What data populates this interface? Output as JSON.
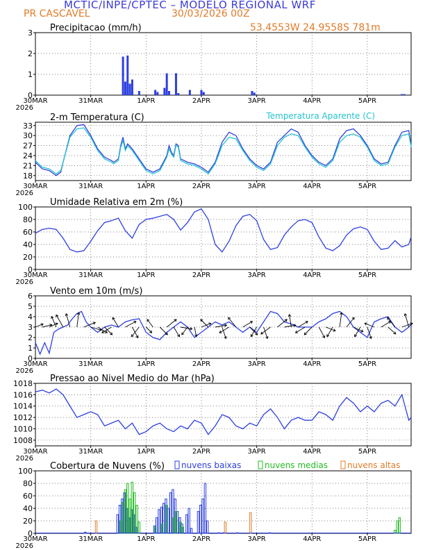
{
  "header": {
    "title": "MCTIC/INPE/CPTEC – MODELO REGIONAL WRF",
    "station": "PR CASCAVEL",
    "run": "30/03/2026 00Z",
    "coords": "53.4553W  24.9558S  781m"
  },
  "colors": {
    "title": "#3a3ad8",
    "accent": "#e07b28",
    "line": "#2d3fe0",
    "apparent": "#22c4cc",
    "low": "#2d3fe0",
    "mid": "#22bb22",
    "high": "#e07b28"
  },
  "chart_data": [
    {
      "id": "precip",
      "type": "bar",
      "title": "Precipitacao (mm/h)",
      "ylim": [
        0,
        3
      ],
      "yticks": [
        0,
        1,
        2,
        3
      ],
      "xlabels": [
        "30MAR",
        "31MAR",
        "1APR",
        "2APR",
        "3APR",
        "4APR",
        "5APR"
      ],
      "year": "2026",
      "series": [
        {
          "name": "precipitacao",
          "x": [
            38,
            39,
            40,
            41,
            42,
            45,
            52,
            53,
            56,
            57,
            58,
            61,
            62,
            67,
            72,
            73,
            94,
            95,
            159,
            160
          ],
          "values": [
            1.85,
            0.65,
            1.9,
            0.55,
            0.75,
            0.2,
            0.25,
            0.15,
            0.35,
            1.05,
            0.2,
            1.05,
            0.1,
            0.25,
            0.25,
            0.15,
            0.2,
            0.12,
            0.05,
            0.05
          ]
        }
      ]
    },
    {
      "id": "temp",
      "type": "line",
      "title": "2-m Temperatura (C)",
      "legend": [
        "Temperatura Aparente (C)"
      ],
      "ylim": [
        16.5,
        34
      ],
      "yticks": [
        18,
        21,
        24,
        27,
        30,
        33
      ],
      "xlabels": [
        "30MAR",
        "31MAR",
        "1APR",
        "2APR",
        "3APR",
        "4APR",
        "5APR"
      ],
      "year": "2026",
      "x": [
        0,
        3,
        6,
        8,
        9,
        11,
        12,
        15,
        18,
        21,
        24,
        27,
        30,
        33,
        34,
        36,
        37,
        38,
        39,
        40,
        42,
        45,
        48,
        51,
        54,
        57,
        58,
        59,
        60,
        61,
        62,
        63,
        66,
        69,
        72,
        75,
        78,
        81,
        84,
        87,
        90,
        93,
        96,
        99,
        102,
        105,
        108,
        111,
        114,
        117,
        120,
        123,
        126,
        129,
        132,
        135,
        138,
        141,
        144,
        147,
        150,
        153,
        156,
        159,
        162,
        163
      ],
      "series": [
        {
          "name": "Temperatura",
          "values": [
            22,
            20,
            19.5,
            18.5,
            18,
            19,
            22,
            30,
            33,
            33.3,
            30,
            26,
            23.5,
            22.5,
            22,
            23,
            27,
            29.5,
            26,
            27.5,
            26,
            23,
            20,
            19,
            20,
            24,
            27,
            25,
            24,
            27.5,
            27,
            23,
            22,
            21.5,
            20.5,
            19,
            22,
            28,
            31,
            30,
            26,
            23,
            21,
            20,
            22,
            28,
            30,
            32,
            31,
            27,
            24,
            22,
            21,
            23,
            29,
            31.5,
            32,
            30,
            27,
            23,
            21.5,
            22,
            27,
            31,
            31.5,
            27
          ]
        },
        {
          "name": "Temperatura Aparente (C)",
          "values": [
            22.5,
            20.5,
            20,
            19,
            18.5,
            19.5,
            22,
            29.5,
            32,
            32.3,
            29.5,
            25.5,
            23,
            22,
            21.5,
            22.5,
            26.5,
            28.5,
            25.5,
            27,
            25.5,
            22.5,
            19.5,
            18.5,
            19.5,
            23.5,
            26,
            24.5,
            23.5,
            27,
            26.5,
            22.5,
            21.5,
            21,
            20,
            18.5,
            21.5,
            27,
            29.5,
            29,
            25.5,
            22.5,
            20.5,
            19.5,
            21.5,
            27,
            29.5,
            30.5,
            30,
            26.5,
            23.5,
            21.5,
            20.5,
            22.5,
            28,
            30,
            30.5,
            29.5,
            26.5,
            22.5,
            21,
            21.5,
            26.5,
            30,
            30.5,
            26.5
          ]
        }
      ]
    },
    {
      "id": "rh",
      "type": "line",
      "title": "Umidade Relativa em 2m (%)",
      "ylim": [
        0,
        100
      ],
      "yticks": [
        0,
        20,
        40,
        60,
        80,
        100
      ],
      "xlabels": [
        "30MAR",
        "31MAR",
        "1APR",
        "2APR",
        "3APR",
        "4APR",
        "5APR"
      ],
      "year": "2026",
      "x": [
        0,
        3,
        6,
        9,
        12,
        15,
        18,
        21,
        24,
        27,
        30,
        33,
        36,
        39,
        42,
        45,
        48,
        51,
        54,
        57,
        60,
        63,
        66,
        69,
        72,
        75,
        78,
        81,
        84,
        87,
        90,
        93,
        96,
        99,
        102,
        105,
        108,
        111,
        114,
        117,
        120,
        123,
        126,
        129,
        132,
        135,
        138,
        141,
        144,
        147,
        150,
        153,
        156,
        159,
        162,
        163
      ],
      "series": [
        {
          "name": "Umidade",
          "values": [
            58,
            64,
            66,
            64,
            50,
            32,
            28,
            30,
            45,
            62,
            75,
            78,
            82,
            62,
            50,
            72,
            80,
            82,
            85,
            88,
            80,
            63,
            75,
            92,
            97,
            80,
            40,
            28,
            45,
            70,
            85,
            88,
            78,
            48,
            32,
            35,
            55,
            68,
            78,
            80,
            75,
            52,
            34,
            30,
            38,
            55,
            65,
            68,
            64,
            45,
            32,
            34,
            46,
            36,
            40,
            52
          ]
        }
      ]
    },
    {
      "id": "wind",
      "type": "line",
      "title": "Vento em 10m (m/s)",
      "ylim": [
        0,
        6
      ],
      "yticks": [
        0,
        1,
        2,
        3,
        4,
        5,
        6
      ],
      "xlabels": [
        "30MAR",
        "31MAR",
        "1APR",
        "2APR",
        "3APR",
        "4APR",
        "5APR"
      ],
      "year": "2026",
      "x": [
        0,
        2,
        4,
        6,
        8,
        10,
        12,
        14,
        16,
        18,
        20,
        22,
        24,
        27,
        30,
        33,
        36,
        39,
        42,
        45,
        48,
        51,
        54,
        57,
        60,
        63,
        66,
        69,
        72,
        75,
        78,
        81,
        84,
        87,
        90,
        93,
        96,
        99,
        102,
        105,
        108,
        111,
        114,
        117,
        120,
        123,
        126,
        129,
        132,
        135,
        138,
        141,
        144,
        147,
        150,
        153,
        156,
        159,
        162,
        163
      ],
      "series": [
        {
          "name": "Vento",
          "values": [
            1.5,
            0.4,
            1.5,
            0.5,
            2.5,
            2.8,
            3,
            3.2,
            3.8,
            4.3,
            4.5,
            3.5,
            3,
            2.5,
            3,
            3.2,
            3,
            3.5,
            3.7,
            3.8,
            2.5,
            2,
            1.8,
            2.5,
            3,
            3.5,
            3,
            2,
            2.5,
            3,
            3.5,
            3.2,
            3.5,
            3,
            2.5,
            3,
            2.5,
            3.5,
            4.5,
            4.3,
            3.5,
            3.3,
            3,
            3,
            3,
            3.5,
            3.8,
            4.3,
            4.5,
            4,
            3,
            2.5,
            2,
            3.5,
            3.8,
            4,
            3,
            2.5,
            3,
            3.3
          ]
        }
      ],
      "barbs": [
        {
          "x": 0,
          "u": 2,
          "v": 0.8
        },
        {
          "x": 3,
          "u": 2.5,
          "v": 0.6
        },
        {
          "x": 6,
          "u": 2.2,
          "v": 1
        },
        {
          "x": 9,
          "u": -1.2,
          "v": 2.8
        },
        {
          "x": 12,
          "u": -1.8,
          "v": 3.2
        },
        {
          "x": 15,
          "u": -1,
          "v": 3.5
        },
        {
          "x": 18,
          "u": 0.5,
          "v": 3.8
        },
        {
          "x": 21,
          "u": 3,
          "v": 1.2
        },
        {
          "x": 24,
          "u": 2.8,
          "v": -0.8
        },
        {
          "x": 27,
          "u": 2.5,
          "v": -1.5
        },
        {
          "x": 30,
          "u": 2,
          "v": -2
        },
        {
          "x": 33,
          "u": -2.5,
          "v": -1.5
        },
        {
          "x": 36,
          "u": -1.5,
          "v": 2.5
        },
        {
          "x": 39,
          "u": 2.8,
          "v": 1.5
        },
        {
          "x": 42,
          "u": 1.5,
          "v": -2.8
        },
        {
          "x": 45,
          "u": -2,
          "v": -2.5
        },
        {
          "x": 48,
          "u": 1.5,
          "v": -1.5
        },
        {
          "x": 51,
          "u": -1.5,
          "v": 2
        },
        {
          "x": 54,
          "u": 2,
          "v": -2
        },
        {
          "x": 57,
          "u": 2.5,
          "v": 2
        },
        {
          "x": 60,
          "u": 1.5,
          "v": -2.5
        },
        {
          "x": 63,
          "u": 3,
          "v": -0.5
        },
        {
          "x": 66,
          "u": -1.5,
          "v": -2
        },
        {
          "x": 69,
          "u": 0.5,
          "v": -2.5
        },
        {
          "x": 72,
          "u": 2.5,
          "v": 1
        },
        {
          "x": 75,
          "u": -2,
          "v": 2
        },
        {
          "x": 78,
          "u": 3,
          "v": 0.5
        },
        {
          "x": 81,
          "u": 1,
          "v": -3
        },
        {
          "x": 84,
          "u": -2.5,
          "v": -1.5
        },
        {
          "x": 87,
          "u": -2,
          "v": 2.5
        },
        {
          "x": 90,
          "u": 2.5,
          "v": 1.5
        },
        {
          "x": 93,
          "u": 2,
          "v": -2
        },
        {
          "x": 96,
          "u": -1.5,
          "v": -2.5
        },
        {
          "x": 99,
          "u": 1,
          "v": -3
        },
        {
          "x": 102,
          "u": -2.5,
          "v": -1.8
        },
        {
          "x": 105,
          "u": 2.5,
          "v": 2
        },
        {
          "x": 108,
          "u": 3,
          "v": 0.5
        },
        {
          "x": 111,
          "u": -0.5,
          "v": 3.3
        },
        {
          "x": 114,
          "u": 2.5,
          "v": 1.5
        },
        {
          "x": 117,
          "u": -2.5,
          "v": -1.5
        },
        {
          "x": 120,
          "u": -2,
          "v": -2
        },
        {
          "x": 123,
          "u": 1.5,
          "v": -2.8
        },
        {
          "x": 126,
          "u": 2.5,
          "v": -1
        },
        {
          "x": 129,
          "u": -1.5,
          "v": -2.5
        },
        {
          "x": 132,
          "u": 0.5,
          "v": 3.8
        },
        {
          "x": 135,
          "u": 2,
          "v": 2.5
        },
        {
          "x": 138,
          "u": 2.5,
          "v": -1.2
        },
        {
          "x": 141,
          "u": -1.5,
          "v": -2.5
        },
        {
          "x": 144,
          "u": 1,
          "v": -3
        },
        {
          "x": 147,
          "u": -2.5,
          "v": 1
        },
        {
          "x": 150,
          "u": 2.5,
          "v": 1.5
        },
        {
          "x": 153,
          "u": 2,
          "v": -1.8
        },
        {
          "x": 156,
          "u": -2,
          "v": 2.5
        },
        {
          "x": 159,
          "u": 2.8,
          "v": 1
        },
        {
          "x": 162,
          "u": -1,
          "v": 3.5
        }
      ]
    },
    {
      "id": "pressure",
      "type": "line",
      "title": "Pressao ao Nivel Medio do Mar (hPa)",
      "ylim": [
        1007,
        1018
      ],
      "yticks": [
        1008,
        1010,
        1012,
        1014,
        1016,
        1018
      ],
      "xlabels": [
        "30MAR",
        "31MAR",
        "1APR",
        "2APR",
        "3APR",
        "4APR",
        "5APR"
      ],
      "year": "2026",
      "x": [
        0,
        3,
        6,
        9,
        12,
        15,
        18,
        21,
        24,
        27,
        30,
        33,
        36,
        39,
        42,
        45,
        48,
        51,
        54,
        57,
        60,
        63,
        66,
        69,
        72,
        75,
        78,
        81,
        84,
        87,
        90,
        93,
        96,
        99,
        102,
        105,
        108,
        111,
        114,
        117,
        120,
        123,
        126,
        129,
        132,
        135,
        138,
        141,
        144,
        147,
        150,
        153,
        156,
        159,
        162,
        163
      ],
      "series": [
        {
          "name": "Pressao",
          "values": [
            1016.5,
            1016.8,
            1016.3,
            1017,
            1016,
            1014,
            1012,
            1012.5,
            1013,
            1012.5,
            1010.5,
            1011,
            1011.5,
            1010,
            1011,
            1009,
            1009.5,
            1010.5,
            1011,
            1010,
            1009.5,
            1010.5,
            1010,
            1011.5,
            1011,
            1009,
            1010.5,
            1012.5,
            1012,
            1010.5,
            1010,
            1011,
            1010.5,
            1012.5,
            1013.5,
            1012,
            1010,
            1011.5,
            1012,
            1011.5,
            1011.5,
            1013,
            1012.5,
            1011.5,
            1014,
            1015.5,
            1014.5,
            1013,
            1014,
            1013,
            1014.5,
            1015,
            1014,
            1016,
            1011.5,
            1012
          ]
        }
      ]
    },
    {
      "id": "clouds",
      "type": "bar",
      "title": "Cobertura de Nuvens (%)",
      "legend": [
        "nuvens baixas",
        "nuvens medias",
        "nuvens altas"
      ],
      "ylim": [
        0,
        100
      ],
      "yticks": [
        0,
        20,
        40,
        60,
        80,
        100
      ],
      "xlabels": [
        "30MAR",
        "31MAR",
        "1APR",
        "2APR",
        "3APR",
        "4APR",
        "5APR"
      ],
      "year": "2026",
      "series": [
        {
          "name": "nuvens baixas",
          "x": [
            22,
            36,
            37,
            38,
            39,
            40,
            41,
            42,
            43,
            44,
            52,
            53,
            54,
            55,
            56,
            57,
            58,
            59,
            60,
            61,
            62,
            63,
            64,
            66,
            67,
            68,
            71,
            72,
            73,
            74,
            75,
            80,
            82,
            88,
            102
          ],
          "values": [
            2,
            30,
            45,
            55,
            65,
            40,
            25,
            38,
            30,
            10,
            12,
            25,
            38,
            42,
            48,
            55,
            40,
            65,
            70,
            55,
            35,
            25,
            15,
            30,
            40,
            8,
            35,
            45,
            55,
            80,
            20,
            1,
            1,
            1,
            1
          ]
        },
        {
          "name": "nuvens medias",
          "x": [
            37,
            38,
            39,
            40,
            41,
            42,
            43,
            44,
            45,
            52,
            55,
            57,
            60,
            61,
            63,
            64,
            156,
            157,
            158
          ],
          "values": [
            20,
            50,
            70,
            80,
            55,
            82,
            65,
            45,
            18,
            10,
            15,
            45,
            25,
            35,
            18,
            10,
            5,
            20,
            25
          ]
        },
        {
          "name": "nuvens altas",
          "x": [
            26,
            82,
            93
          ],
          "values": [
            20,
            18,
            33
          ]
        }
      ]
    }
  ]
}
